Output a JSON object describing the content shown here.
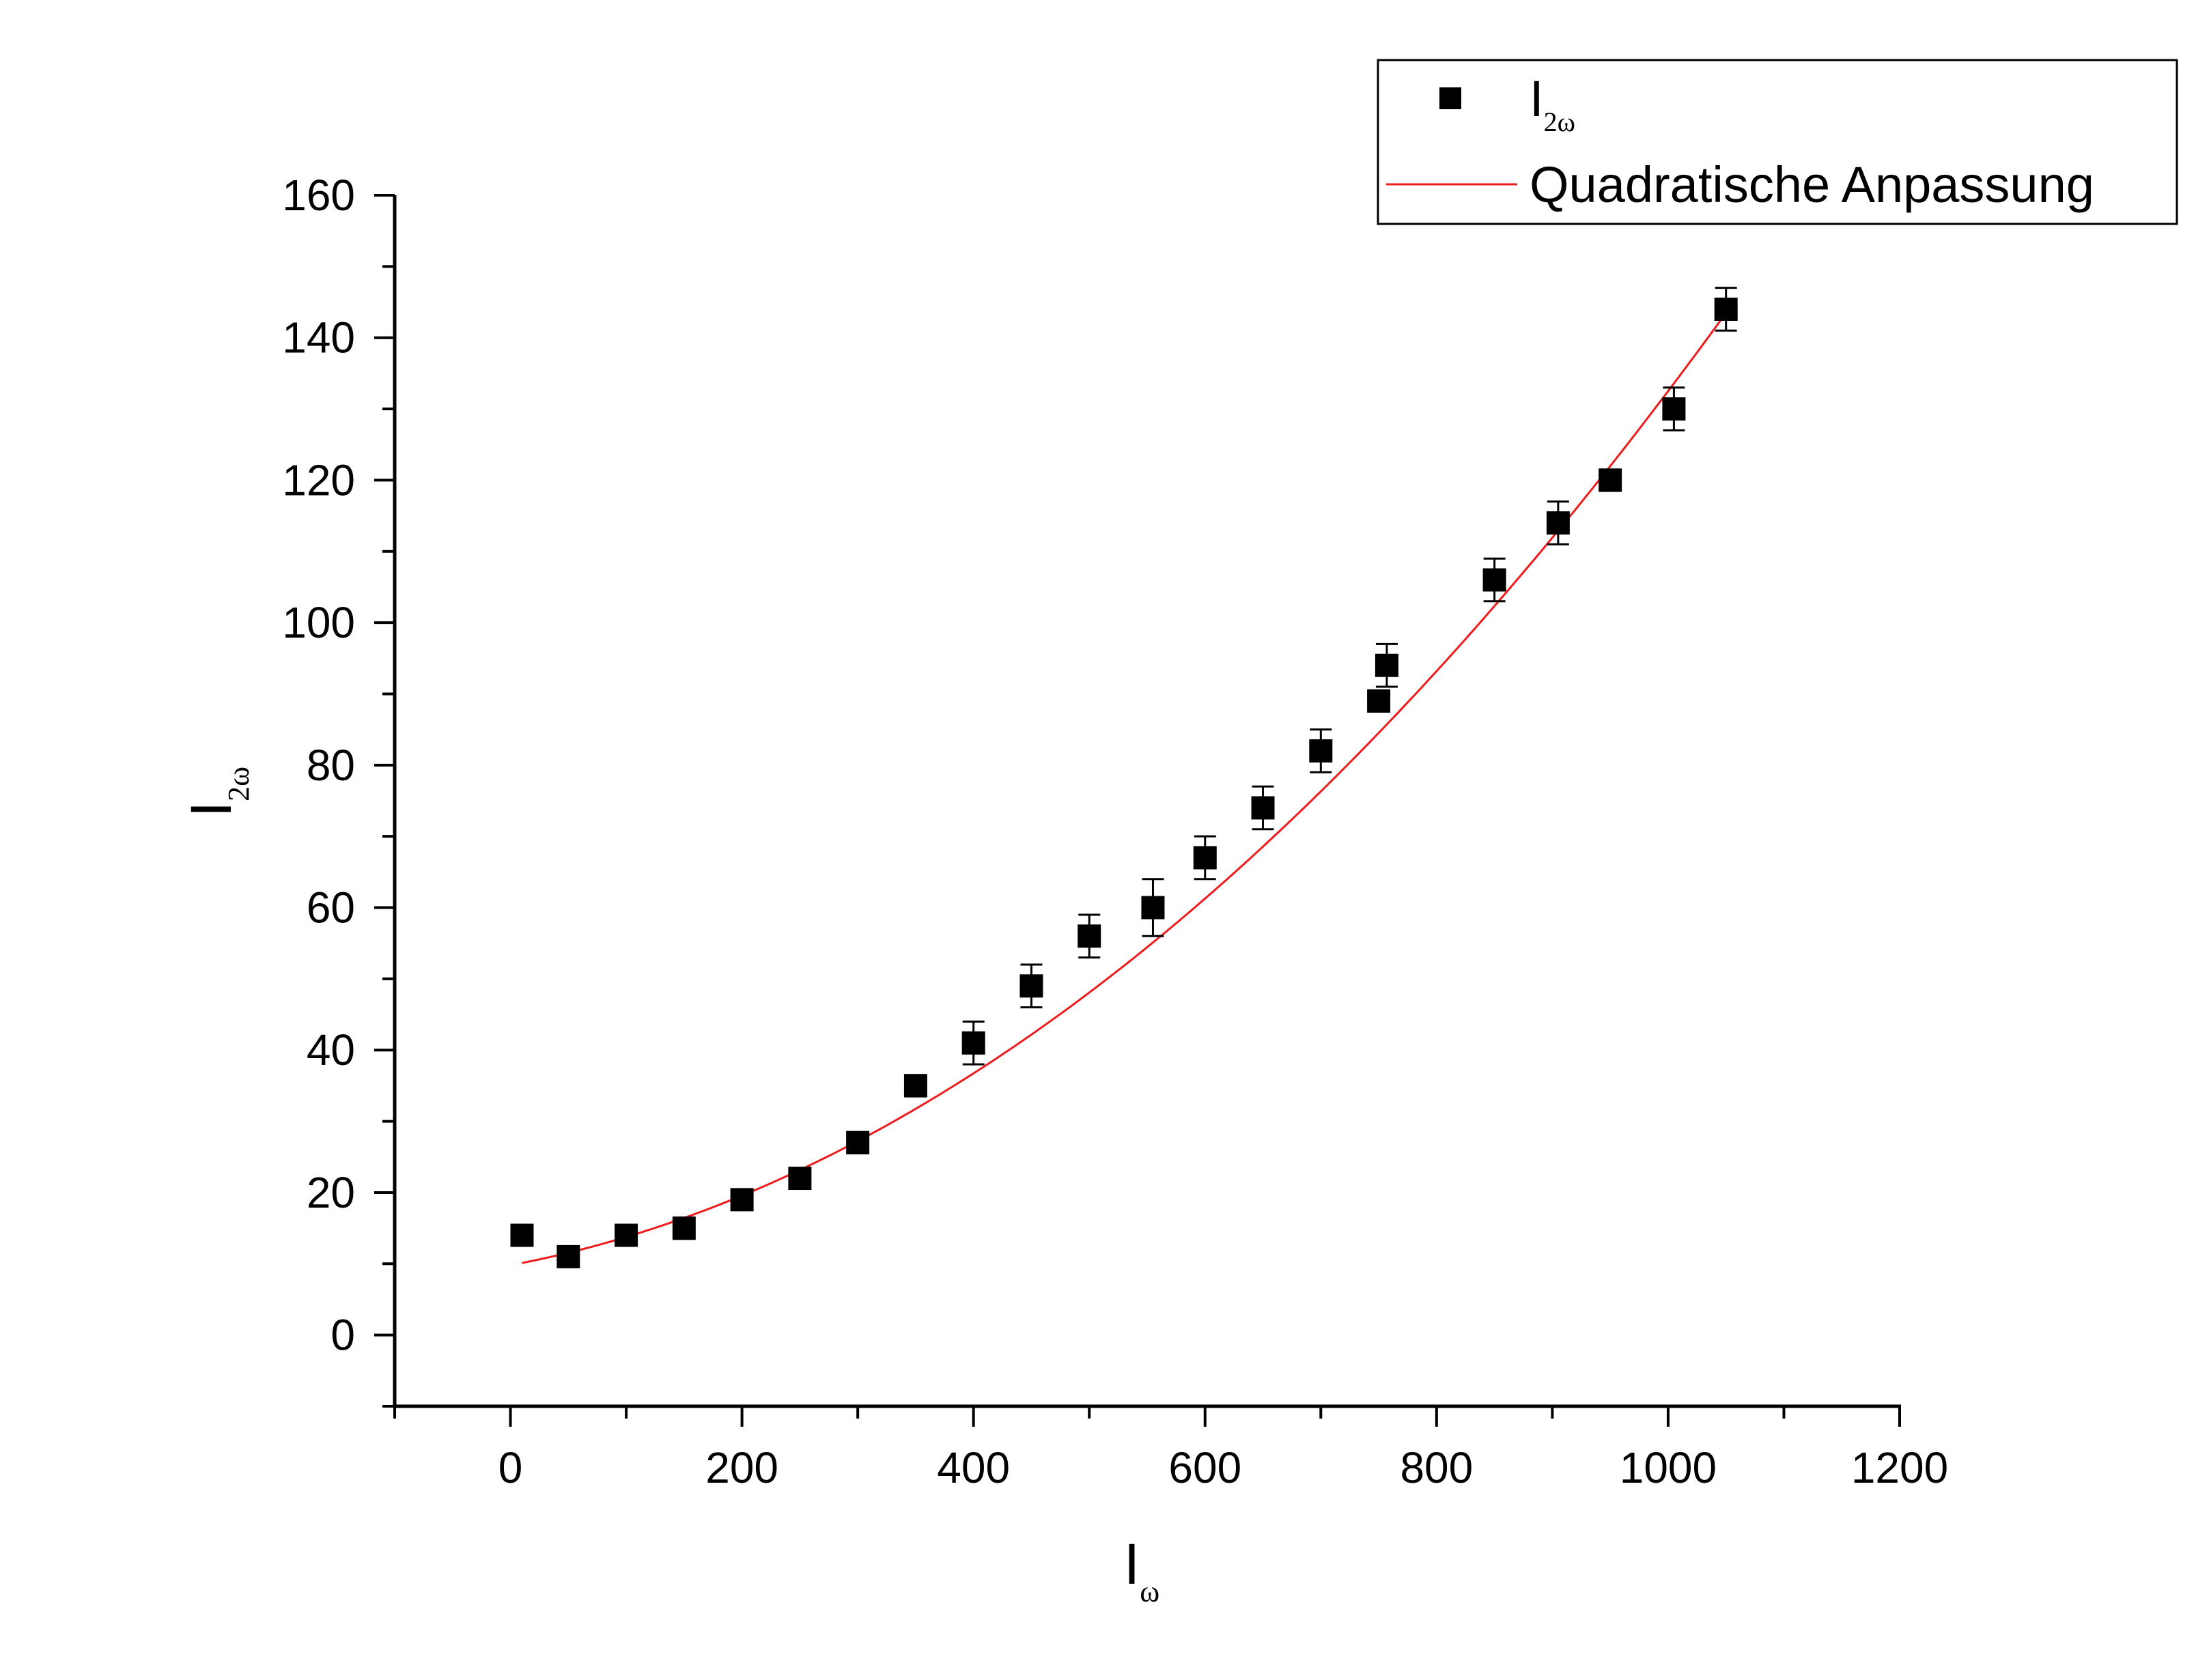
{
  "chart_data": {
    "type": "scatter",
    "title": "",
    "xlabel": "I",
    "xlabel_sub": "ω",
    "ylabel": "I",
    "ylabel_sub": "2ω",
    "xlim": [
      -100,
      1200
    ],
    "ylim": [
      -10,
      160
    ],
    "x_ticks": [
      0,
      200,
      400,
      600,
      800,
      1000,
      1200
    ],
    "y_ticks": [
      0,
      20,
      40,
      60,
      80,
      100,
      120,
      140,
      160
    ],
    "grid": false,
    "legend_position": "top-right",
    "series": [
      {
        "name": "I",
        "name_sub": "2ω",
        "kind": "scatter",
        "marker": "square",
        "color": "#000000",
        "x": [
          10,
          50,
          100,
          150,
          200,
          250,
          300,
          350,
          400,
          450,
          500,
          555,
          600,
          650,
          700,
          750,
          757,
          850,
          905,
          950,
          1005,
          1050
        ],
        "y": [
          14,
          11,
          14,
          15,
          19,
          22,
          27,
          35,
          41,
          49,
          56,
          60,
          67,
          74,
          82,
          89,
          94,
          106,
          114,
          120,
          130,
          144
        ],
        "yerr": [
          1,
          0.8,
          1,
          1.5,
          1,
          1,
          1.5,
          1.5,
          3,
          3,
          3,
          4,
          3,
          3,
          3,
          1.5,
          3,
          3,
          3,
          1.5,
          3,
          3
        ]
      },
      {
        "name": "Quadratische Anpassung",
        "kind": "line",
        "color": "#ee1c1c",
        "model": "quadratic",
        "x_range": [
          10,
          1050
        ],
        "coefficients": {
          "a": 9.23e-05,
          "b": 0.0304,
          "c": 9.8
        }
      }
    ]
  }
}
